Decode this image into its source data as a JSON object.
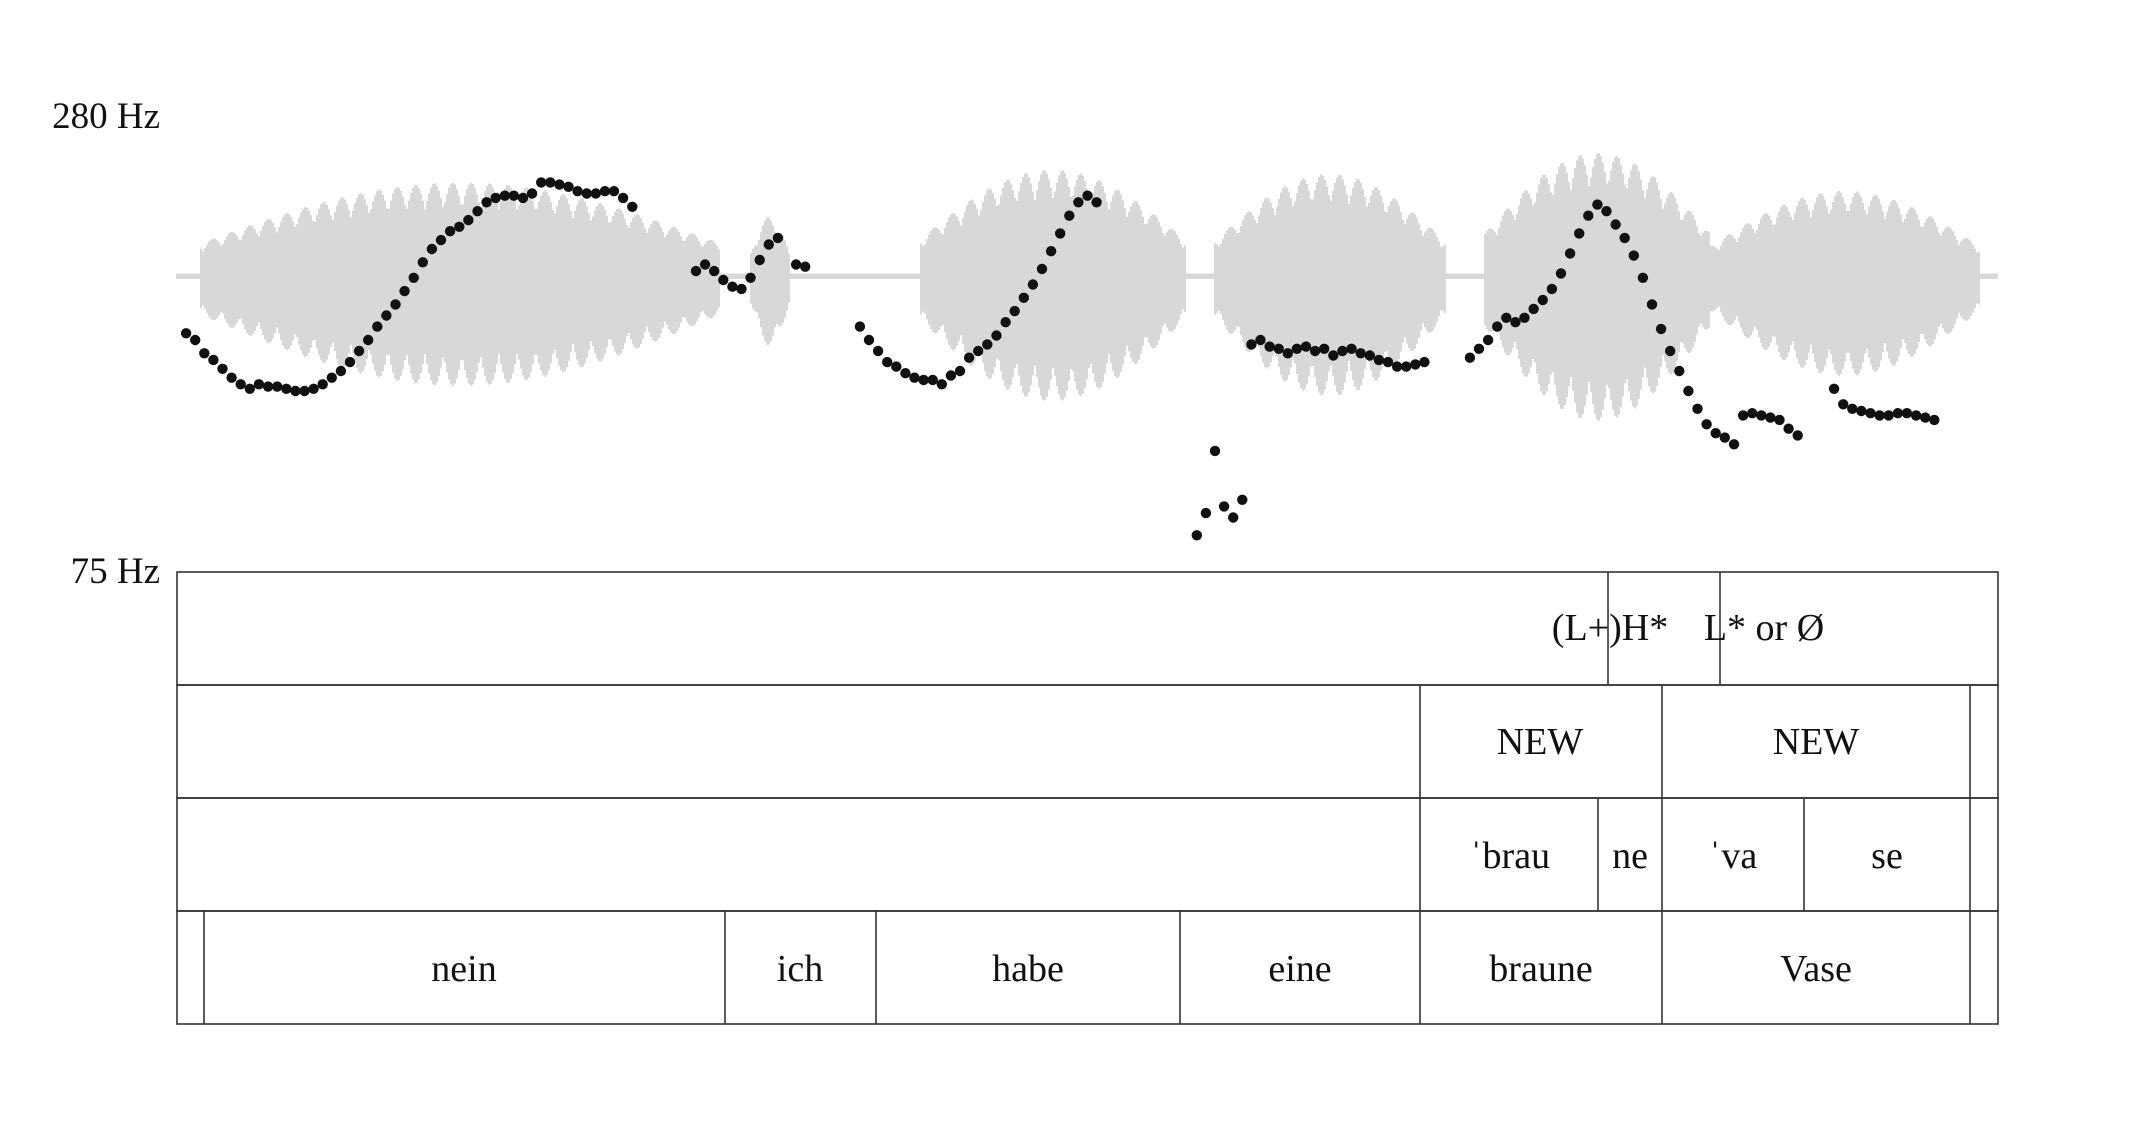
{
  "axis": {
    "f0_max_label": "280 Hz",
    "f0_min_label": "75 Hz",
    "f0_max": 280,
    "f0_min": 75
  },
  "colors": {
    "waveform": "#bdbdbd",
    "pitch_points": "#111111",
    "tier_lines": "#333333"
  },
  "tiers": {
    "tones": {
      "labels": [
        "(L+)H*",
        "L* or Ø"
      ]
    },
    "information_status": {
      "labels": [
        "NEW",
        "NEW"
      ]
    },
    "syllables": {
      "labels": [
        "ˈbrau",
        "ne",
        "ˈva",
        "se"
      ]
    },
    "words": {
      "labels": [
        "nein",
        "ich",
        "habe",
        "eine",
        "braune",
        "Vase"
      ]
    }
  },
  "chart_data": {
    "type": "scatter",
    "description_of_series": "F0 contour",
    "ylim": [
      75,
      280
    ],
    "series": [
      {
        "name": "",
        "segments": [
          [
            [
              0.01,
              183
            ],
            [
              0.02,
              180
            ],
            [
              0.03,
              174
            ],
            [
              0.04,
              171
            ],
            [
              0.05,
              167
            ],
            [
              0.06,
              163
            ],
            [
              0.07,
              160
            ],
            [
              0.08,
              158
            ],
            [
              0.09,
              160
            ],
            [
              0.1,
              159
            ],
            [
              0.11,
              159
            ],
            [
              0.12,
              158
            ],
            [
              0.13,
              157
            ],
            [
              0.14,
              157
            ],
            [
              0.15,
              158
            ],
            [
              0.16,
              160
            ],
            [
              0.17,
              163
            ],
            [
              0.18,
              166
            ],
            [
              0.19,
              170
            ],
            [
              0.2,
              175
            ],
            [
              0.21,
              180
            ],
            [
              0.22,
              186
            ],
            [
              0.23,
              191
            ],
            [
              0.24,
              196
            ],
            [
              0.25,
              202
            ],
            [
              0.26,
              208
            ],
            [
              0.27,
              215
            ],
            [
              0.28,
              221
            ],
            [
              0.29,
              225
            ],
            [
              0.3,
              229
            ],
            [
              0.31,
              231
            ],
            [
              0.32,
              234
            ],
            [
              0.33,
              238
            ],
            [
              0.34,
              242
            ],
            [
              0.35,
              244
            ],
            [
              0.36,
              245
            ],
            [
              0.37,
              245
            ],
            [
              0.38,
              244
            ],
            [
              0.39,
              246
            ],
            [
              0.4,
              251
            ],
            [
              0.41,
              251
            ],
            [
              0.42,
              250
            ],
            [
              0.43,
              249
            ],
            [
              0.44,
              247
            ],
            [
              0.45,
              246
            ],
            [
              0.46,
              246
            ],
            [
              0.47,
              247
            ],
            [
              0.48,
              247
            ],
            [
              0.49,
              244
            ],
            [
              0.5,
              240
            ]
          ],
          [
            [
              0.57,
              211
            ],
            [
              0.58,
              214
            ],
            [
              0.59,
              211
            ],
            [
              0.6,
              207
            ],
            [
              0.61,
              204
            ],
            [
              0.62,
              203
            ],
            [
              0.63,
              208
            ],
            [
              0.64,
              216
            ],
            [
              0.65,
              223
            ],
            [
              0.66,
              226
            ]
          ],
          [
            [
              0.68,
              214
            ],
            [
              0.69,
              213
            ]
          ],
          [
            [
              0.75,
              186
            ],
            [
              0.76,
              180
            ],
            [
              0.77,
              175
            ],
            [
              0.78,
              170
            ],
            [
              0.79,
              168
            ],
            [
              0.8,
              165
            ],
            [
              0.81,
              163
            ],
            [
              0.82,
              162
            ],
            [
              0.83,
              162
            ],
            [
              0.84,
              160
            ],
            [
              0.85,
              164
            ],
            [
              0.86,
              166
            ],
            [
              0.87,
              172
            ],
            [
              0.88,
              175
            ],
            [
              0.89,
              178
            ],
            [
              0.9,
              182
            ],
            [
              0.91,
              188
            ],
            [
              0.92,
              193
            ],
            [
              0.93,
              199
            ],
            [
              0.94,
              205
            ],
            [
              0.95,
              212
            ],
            [
              0.96,
              220
            ],
            [
              0.97,
              228
            ],
            [
              0.98,
              236
            ],
            [
              0.99,
              242
            ],
            [
              1.0,
              245
            ],
            [
              1.01,
              242
            ]
          ],
          [
            [
              1.12,
              92
            ],
            [
              1.13,
              102
            ],
            [
              1.14,
              130
            ],
            [
              1.15,
              105
            ],
            [
              1.16,
              100
            ],
            [
              1.17,
              108
            ]
          ],
          [
            [
              1.18,
              178
            ],
            [
              1.19,
              180
            ],
            [
              1.2,
              177
            ],
            [
              1.21,
              176
            ],
            [
              1.22,
              174
            ],
            [
              1.23,
              176
            ],
            [
              1.24,
              177
            ],
            [
              1.25,
              175
            ],
            [
              1.26,
              176
            ],
            [
              1.27,
              173
            ],
            [
              1.28,
              175
            ],
            [
              1.29,
              176
            ],
            [
              1.3,
              174
            ],
            [
              1.31,
              173
            ],
            [
              1.32,
              171
            ],
            [
              1.33,
              170
            ],
            [
              1.34,
              168
            ],
            [
              1.35,
              168
            ],
            [
              1.36,
              169
            ],
            [
              1.37,
              170
            ]
          ],
          [
            [
              1.42,
              172
            ],
            [
              1.43,
              176
            ],
            [
              1.44,
              180
            ],
            [
              1.45,
              186
            ],
            [
              1.46,
              190
            ],
            [
              1.47,
              188
            ],
            [
              1.48,
              190
            ],
            [
              1.49,
              194
            ],
            [
              1.5,
              198
            ],
            [
              1.51,
              203
            ],
            [
              1.52,
              210
            ],
            [
              1.53,
              219
            ],
            [
              1.54,
              228
            ],
            [
              1.55,
              236
            ],
            [
              1.56,
              241
            ],
            [
              1.57,
              238
            ],
            [
              1.58,
              232
            ],
            [
              1.59,
              226
            ],
            [
              1.6,
              218
            ],
            [
              1.61,
              208
            ],
            [
              1.62,
              196
            ],
            [
              1.63,
              185
            ],
            [
              1.64,
              175
            ],
            [
              1.65,
              166
            ],
            [
              1.66,
              157
            ],
            [
              1.67,
              149
            ],
            [
              1.68,
              142
            ],
            [
              1.69,
              138
            ],
            [
              1.7,
              136
            ],
            [
              1.71,
              133
            ]
          ],
          [
            [
              1.72,
              146
            ],
            [
              1.73,
              147
            ],
            [
              1.74,
              146
            ],
            [
              1.75,
              145
            ],
            [
              1.76,
              144
            ],
            [
              1.77,
              140
            ],
            [
              1.78,
              137
            ]
          ],
          [
            [
              1.82,
              158
            ],
            [
              1.83,
              151
            ],
            [
              1.84,
              149
            ],
            [
              1.85,
              148
            ],
            [
              1.86,
              147
            ],
            [
              1.87,
              146
            ],
            [
              1.88,
              146
            ],
            [
              1.89,
              147
            ],
            [
              1.9,
              147
            ],
            [
              1.91,
              146
            ],
            [
              1.92,
              145
            ],
            [
              1.93,
              144
            ]
          ]
        ]
      }
    ]
  }
}
